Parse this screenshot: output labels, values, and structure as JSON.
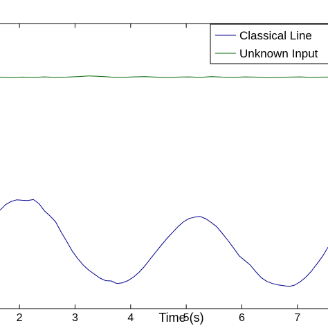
{
  "chart_data": {
    "type": "line",
    "title": "",
    "xlabel": "Time (s)",
    "ylabel": "",
    "xlim": [
      1.65,
      7.55
    ],
    "ylim": [
      0,
      1
    ],
    "x_ticks": [
      2,
      3,
      4,
      5,
      6,
      7
    ],
    "x_tick_labels": [
      "2",
      "3",
      "4",
      "5",
      "6",
      "7"
    ],
    "grid": false,
    "legend": {
      "location": "top-right",
      "entries": [
        "Classical Line",
        "Unknown Input"
      ]
    },
    "series": [
      {
        "name": "Classical Line",
        "color": "#00008b",
        "x": [
          1.65,
          1.75,
          1.85,
          1.95,
          2.05,
          2.15,
          2.25,
          2.35,
          2.45,
          2.55,
          2.65,
          2.75,
          2.85,
          2.95,
          3.05,
          3.15,
          3.25,
          3.35,
          3.45,
          3.55,
          3.65,
          3.75,
          3.85,
          3.95,
          4.05,
          4.15,
          4.25,
          4.35,
          4.45,
          4.55,
          4.65,
          4.75,
          4.85,
          4.95,
          5.05,
          5.15,
          5.25,
          5.35,
          5.45,
          5.55,
          5.65,
          5.75,
          5.85,
          5.95,
          6.05,
          6.15,
          6.25,
          6.35,
          6.45,
          6.55,
          6.65,
          6.75,
          6.85,
          6.95,
          7.05,
          7.15,
          7.25,
          7.35,
          7.45,
          7.55
        ],
        "y": [
          0.33,
          0.354,
          0.368,
          0.375,
          0.373,
          0.372,
          0.376,
          0.359,
          0.327,
          0.305,
          0.28,
          0.235,
          0.195,
          0.153,
          0.12,
          0.092,
          0.07,
          0.053,
          0.036,
          0.025,
          0.024,
          0.013,
          0.016,
          0.025,
          0.04,
          0.061,
          0.087,
          0.118,
          0.148,
          0.178,
          0.207,
          0.233,
          0.258,
          0.28,
          0.294,
          0.3,
          0.303,
          0.293,
          0.277,
          0.258,
          0.229,
          0.199,
          0.167,
          0.133,
          0.113,
          0.093,
          0.064,
          0.038,
          0.022,
          0.013,
          0.007,
          0.004,
          0.0,
          0.006,
          0.02,
          0.04,
          0.066,
          0.097,
          0.13,
          0.17
        ]
      },
      {
        "name": "Unknown Input",
        "color": "#006400",
        "x": [
          1.65,
          1.85,
          2.05,
          2.25,
          2.45,
          2.65,
          2.85,
          3.05,
          3.25,
          3.45,
          3.65,
          3.85,
          4.05,
          4.25,
          4.45,
          4.65,
          4.85,
          5.05,
          5.25,
          5.45,
          5.65,
          5.85,
          6.05,
          6.25,
          6.45,
          6.65,
          6.85,
          7.05,
          7.25,
          7.45,
          7.55
        ],
        "y": [
          0.906,
          0.904,
          0.906,
          0.905,
          0.907,
          0.905,
          0.906,
          0.908,
          0.911,
          0.909,
          0.906,
          0.905,
          0.907,
          0.908,
          0.906,
          0.904,
          0.906,
          0.907,
          0.905,
          0.908,
          0.906,
          0.905,
          0.907,
          0.906,
          0.904,
          0.905,
          0.906,
          0.907,
          0.905,
          0.906,
          0.906
        ]
      }
    ]
  }
}
